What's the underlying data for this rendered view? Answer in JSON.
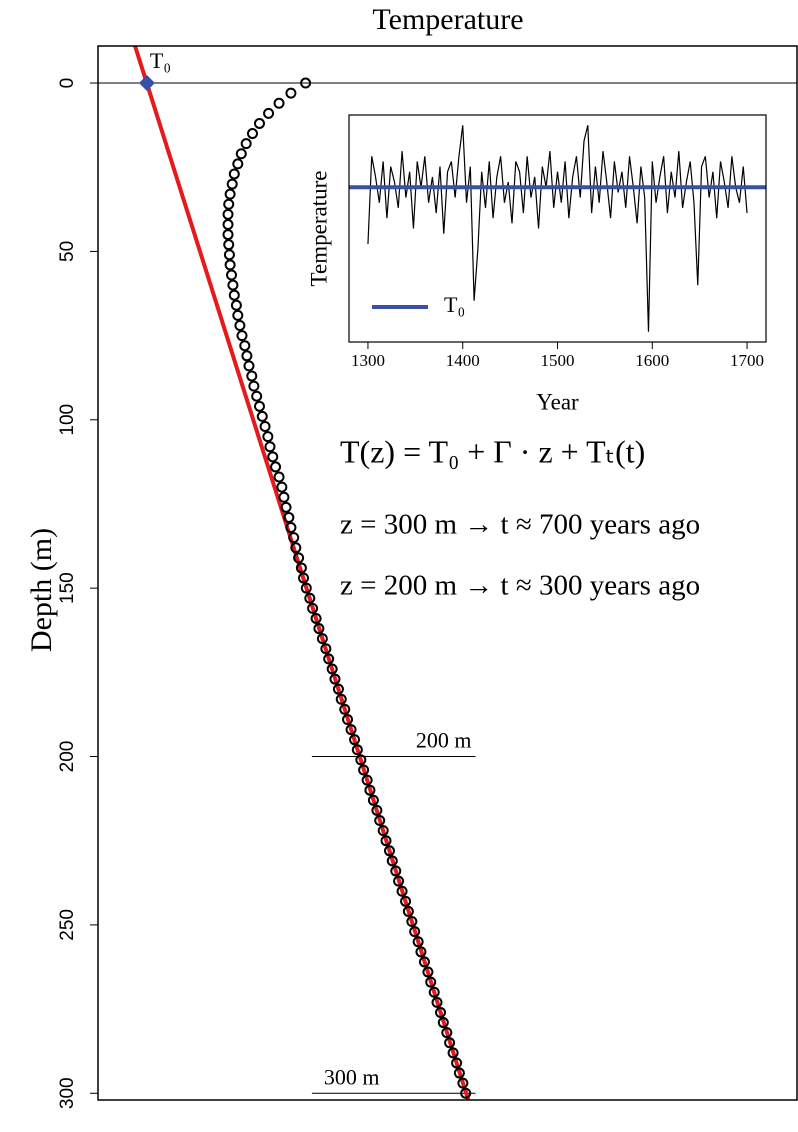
{
  "chart_data": [
    {
      "type": "scatter",
      "title": "Temperature",
      "y_label": "Depth (m)",
      "y_reversed": true,
      "xlim": [
        0,
        100
      ],
      "ylim": [
        -11,
        302
      ],
      "yticks": [
        0,
        50,
        100,
        150,
        200,
        250,
        300
      ],
      "x": [
        29.7,
        27.6,
        25.9,
        24.4,
        23.1,
        22.1,
        21.2,
        20.5,
        20.0,
        19.5,
        19.2,
        18.9,
        18.7,
        18.6,
        18.6,
        18.6,
        18.7,
        18.8,
        18.9,
        19.1,
        19.3,
        19.5,
        19.8,
        20.0,
        20.3,
        20.6,
        21.0,
        21.3,
        21.6,
        22.0,
        22.3,
        22.7,
        23.1,
        23.5,
        23.9,
        24.3,
        24.6,
        25.0,
        25.4,
        25.9,
        26.3,
        26.6,
        26.9,
        27.3,
        27.6,
        28.0,
        28.3,
        28.7,
        29.1,
        29.4,
        29.8,
        30.3,
        30.7,
        31.2,
        31.6,
        32.1,
        32.6,
        33.0,
        33.5,
        33.9,
        34.4,
        34.8,
        35.3,
        35.7,
        36.2,
        36.7,
        37.1,
        37.6,
        38.0,
        38.5,
        38.9,
        39.4,
        39.9,
        40.3,
        40.8,
        41.2,
        41.7,
        42.1,
        42.6,
        43.0,
        43.5,
        44.0,
        44.4,
        44.9,
        45.3,
        45.8,
        46.2,
        46.7,
        47.2,
        47.6,
        48.1,
        48.5,
        49.0,
        49.4,
        49.9,
        50.3,
        50.8,
        51.3,
        51.7,
        52.2,
        52.6
      ],
      "y": [
        0,
        3,
        6,
        9,
        12,
        15,
        18,
        21,
        24,
        27,
        30,
        33,
        36,
        39,
        42,
        45,
        48,
        51,
        54,
        57,
        60,
        63,
        66,
        69,
        72,
        75,
        78,
        81,
        84,
        87,
        90,
        93,
        96,
        99,
        102,
        105,
        108,
        111,
        114,
        117,
        120,
        123,
        126,
        129,
        132,
        135,
        138,
        141,
        144,
        147,
        150,
        153,
        156,
        159,
        162,
        165,
        168,
        171,
        174,
        177,
        180,
        183,
        186,
        189,
        192,
        195,
        198,
        201,
        204,
        207,
        210,
        213,
        216,
        219,
        222,
        225,
        228,
        231,
        234,
        237,
        240,
        243,
        246,
        249,
        252,
        255,
        258,
        261,
        264,
        267,
        270,
        273,
        276,
        279,
        282,
        285,
        288,
        291,
        294,
        297,
        300
      ],
      "marker_color": "#000000",
      "gradient_line": {
        "x": [
          5.3,
          54.5
        ],
        "y": [
          -11,
          312
        ],
        "color": "#e41a1c"
      },
      "t0_point": {
        "x": 7,
        "y": 0,
        "label": "T₀",
        "color": "#3a4fa8"
      },
      "reference_lines": [
        {
          "y": 0,
          "x": [
            0,
            100
          ]
        },
        {
          "y": 200,
          "x": [
            30.6,
            54.0
          ],
          "label": "200 m"
        },
        {
          "y": 300,
          "x": [
            30.6,
            54.0
          ],
          "label": "300 m"
        }
      ],
      "annotations": [
        "T(z) = T₀ + Γ · z + Tₜ(t)",
        "z = 300 m → t ≈ 700 years ago",
        "z = 200 m → t ≈ 300 years ago"
      ]
    },
    {
      "type": "line",
      "x_label": "Year",
      "y_label": "Temperature",
      "xlim": [
        1280,
        1720
      ],
      "ylim": [
        -3.0,
        1.4
      ],
      "xticks": [
        1300,
        1400,
        1500,
        1600,
        1700
      ],
      "x": [
        1300,
        1304,
        1308,
        1312,
        1316,
        1320,
        1324,
        1328,
        1332,
        1336,
        1340,
        1344,
        1348,
        1352,
        1356,
        1360,
        1364,
        1368,
        1372,
        1376,
        1380,
        1384,
        1388,
        1392,
        1396,
        1400,
        1404,
        1408,
        1412,
        1416,
        1420,
        1424,
        1428,
        1432,
        1436,
        1440,
        1444,
        1448,
        1452,
        1456,
        1460,
        1464,
        1468,
        1472,
        1476,
        1480,
        1484,
        1488,
        1492,
        1496,
        1500,
        1504,
        1508,
        1512,
        1516,
        1520,
        1524,
        1528,
        1532,
        1536,
        1540,
        1544,
        1548,
        1552,
        1556,
        1560,
        1564,
        1568,
        1572,
        1576,
        1580,
        1584,
        1588,
        1592,
        1596,
        1600,
        1604,
        1608,
        1612,
        1616,
        1620,
        1624,
        1628,
        1632,
        1636,
        1640,
        1644,
        1648,
        1652,
        1656,
        1660,
        1664,
        1668,
        1672,
        1676,
        1680,
        1684,
        1688,
        1692,
        1696,
        1700
      ],
      "values": [
        -1.1,
        0.6,
        0.2,
        -0.3,
        0.5,
        -0.6,
        0.4,
        0.1,
        -0.4,
        0.7,
        -0.2,
        0.3,
        -0.8,
        0.5,
        0.0,
        0.6,
        -0.3,
        0.2,
        -0.5,
        0.4,
        -0.9,
        0.3,
        0.5,
        -0.2,
        0.6,
        1.2,
        -0.3,
        0.4,
        -2.2,
        -1.2,
        0.3,
        -0.4,
        0.5,
        -0.6,
        0.2,
        0.6,
        -0.3,
        0.1,
        -0.7,
        0.5,
        0.3,
        -0.5,
        0.6,
        -0.2,
        0.2,
        -0.8,
        0.4,
        0.0,
        0.7,
        -0.4,
        0.3,
        -0.3,
        0.5,
        -0.6,
        0.2,
        0.6,
        -0.2,
        0.9,
        1.2,
        -0.5,
        0.4,
        -0.3,
        0.7,
        0.1,
        -0.6,
        0.5,
        -0.1,
        0.3,
        -0.4,
        0.6,
        0.0,
        -0.7,
        0.4,
        -0.2,
        -2.8,
        0.5,
        -0.3,
        0.2,
        0.6,
        -0.5,
        0.3,
        -0.2,
        0.7,
        -0.4,
        0.1,
        0.5,
        -0.3,
        -1.9,
        0.4,
        0.6,
        -0.2,
        0.3,
        -0.6,
        0.5,
        0.1,
        -0.4,
        0.6,
        0.0,
        -0.3,
        0.4,
        -0.5
      ],
      "color": "#000000",
      "hlines": [
        {
          "name": "T₀",
          "value": 0,
          "color": "#3a4fa8"
        }
      ],
      "legend": "bottomleft"
    }
  ]
}
